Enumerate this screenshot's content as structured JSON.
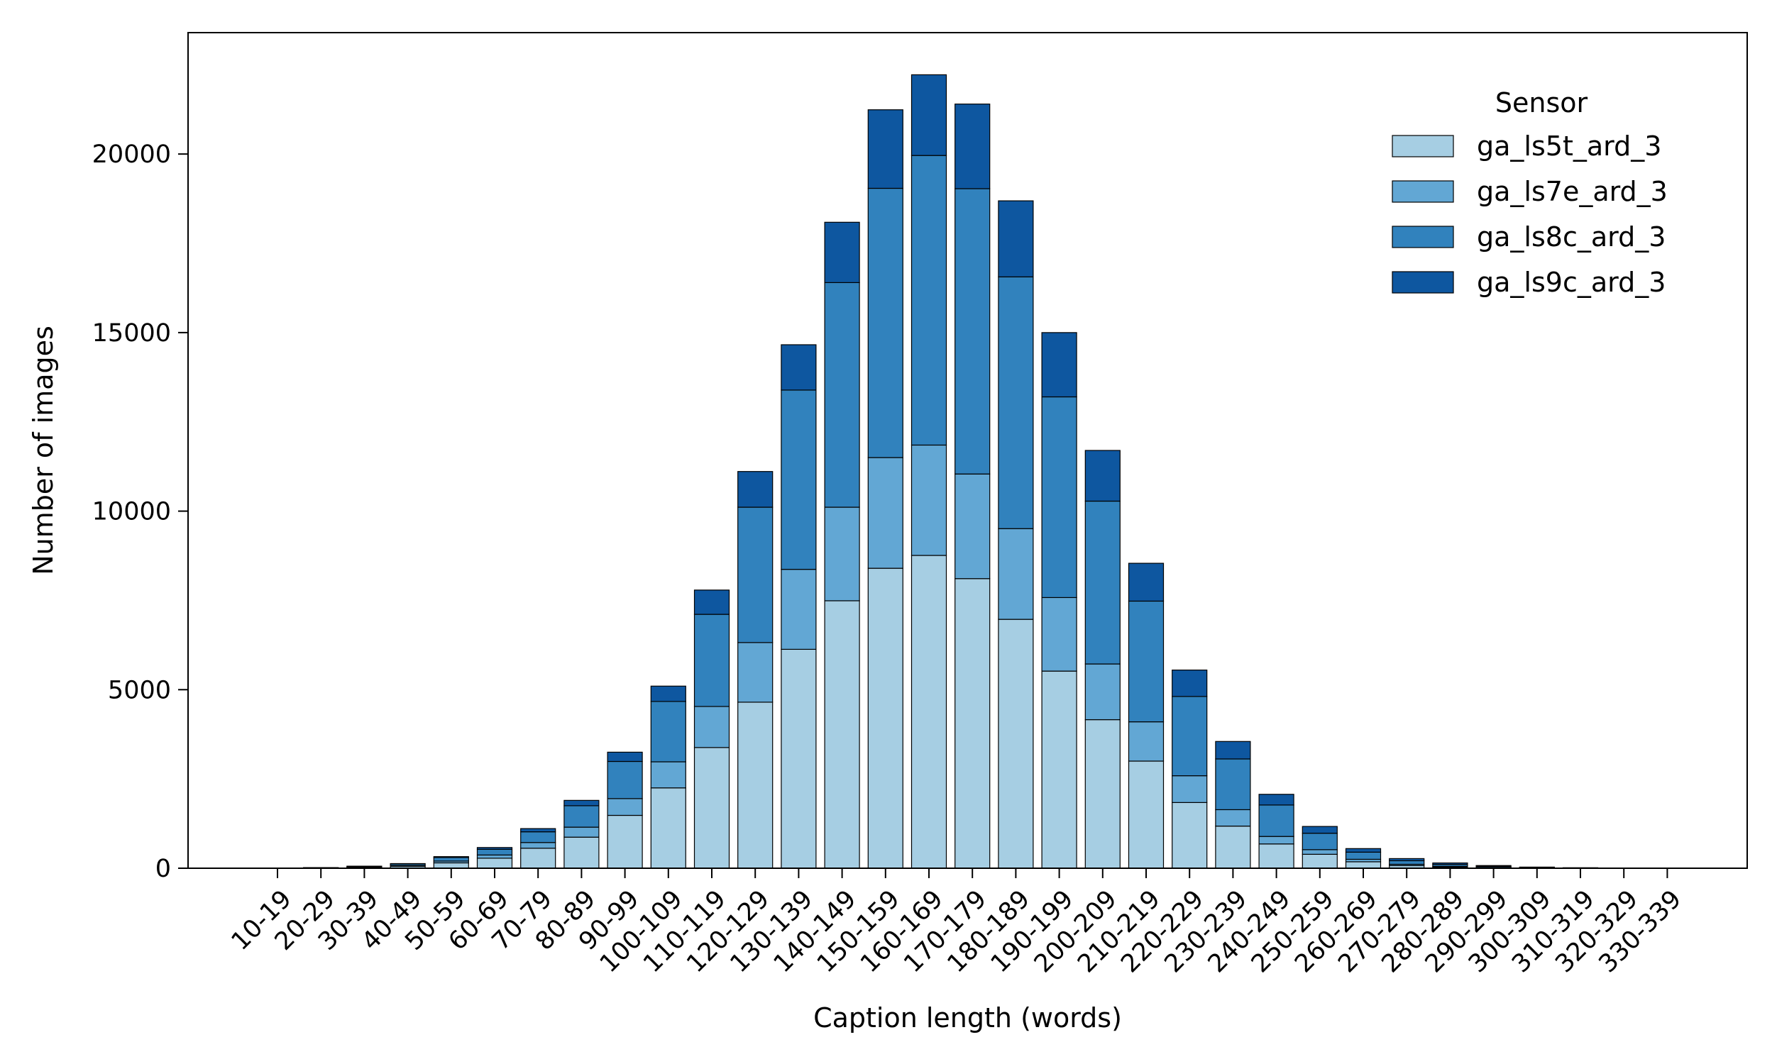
{
  "chart_data": {
    "type": "bar",
    "stacked": true,
    "title": "",
    "xlabel": "Caption length (words)",
    "ylabel": "Number of images",
    "ylim": [
      0,
      23400
    ],
    "yticks": [
      0,
      5000,
      10000,
      15000,
      20000
    ],
    "grid": false,
    "legend": {
      "title": "Sensor",
      "placement": "top-right"
    },
    "categories": [
      "10-19",
      "20-29",
      "30-39",
      "40-49",
      "50-59",
      "60-69",
      "70-79",
      "80-89",
      "90-99",
      "100-109",
      "110-119",
      "120-129",
      "130-139",
      "140-149",
      "150-159",
      "160-169",
      "170-179",
      "180-189",
      "190-199",
      "200-209",
      "210-219",
      "220-229",
      "230-239",
      "240-249",
      "250-259",
      "260-269",
      "270-279",
      "280-289",
      "290-299",
      "300-309",
      "310-319",
      "320-329",
      "330-339"
    ],
    "series": [
      {
        "name": "ga_ls5t_ard_3",
        "color": "#a6cee3",
        "values": [
          3,
          8,
          25,
          55,
          150,
          280,
          560,
          870,
          1480,
          2250,
          3380,
          4650,
          6130,
          7490,
          8400,
          8760,
          8110,
          6970,
          5520,
          4160,
          3000,
          1840,
          1180,
          680,
          390,
          180,
          75,
          35,
          15,
          6,
          3,
          1,
          0
        ]
      },
      {
        "name": "ga_ls7e_ard_3",
        "color": "#62a7d4",
        "values": [
          1,
          3,
          8,
          20,
          50,
          90,
          160,
          280,
          470,
          730,
          1150,
          1670,
          2240,
          2620,
          3100,
          3090,
          2930,
          2540,
          2060,
          1560,
          1100,
          750,
          460,
          210,
          130,
          70,
          35,
          18,
          8,
          4,
          1,
          0,
          0
        ]
      },
      {
        "name": "ga_ls8c_ard_3",
        "color": "#3182bd",
        "values": [
          2,
          5,
          20,
          45,
          100,
          160,
          300,
          600,
          1040,
          1690,
          2580,
          3790,
          5020,
          6290,
          7540,
          8110,
          7990,
          7050,
          5620,
          4560,
          3380,
          2220,
          1420,
          880,
          460,
          200,
          100,
          55,
          30,
          12,
          5,
          2,
          0
        ]
      },
      {
        "name": "ga_ls9c_ard_3",
        "color": "#0e57a0",
        "values": [
          1,
          2,
          5,
          10,
          25,
          50,
          90,
          150,
          260,
          430,
          680,
          1000,
          1270,
          1690,
          2200,
          2260,
          2370,
          2130,
          1800,
          1420,
          1060,
          740,
          490,
          300,
          190,
          100,
          60,
          40,
          22,
          10,
          5,
          2,
          0
        ]
      }
    ]
  }
}
